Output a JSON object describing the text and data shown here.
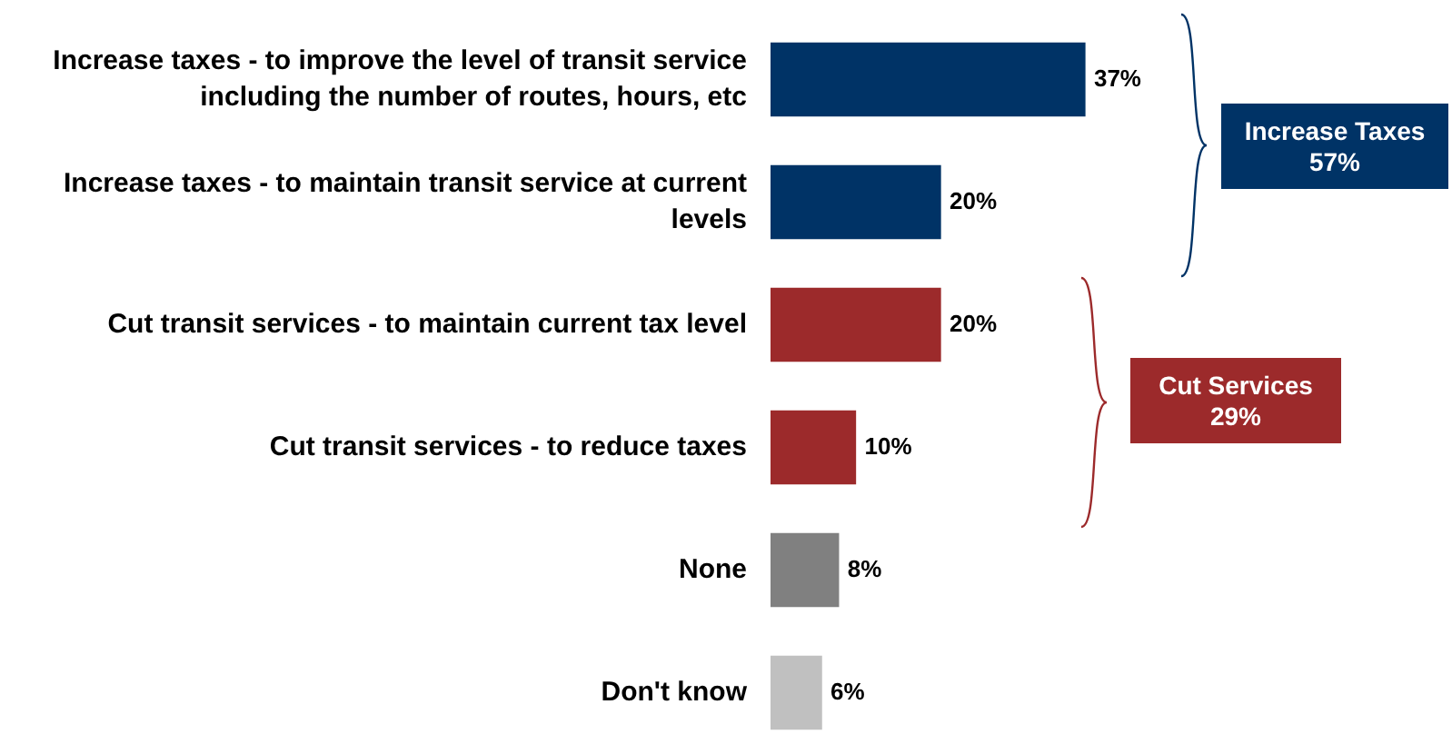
{
  "chart_data": {
    "type": "bar",
    "orientation": "horizontal",
    "categories": [
      "Increase taxes - to improve the level of transit service including the number of routes, hours, etc",
      "Increase taxes - to maintain transit service at current levels",
      "Cut transit services - to maintain current tax level",
      "Cut transit services - to reduce taxes",
      "None",
      "Don't know"
    ],
    "values": [
      37,
      20,
      20,
      10,
      8,
      6
    ],
    "colors": [
      "#003366",
      "#003366",
      "#9c2a2b",
      "#9c2a2b",
      "#808080",
      "#c0c0c0"
    ],
    "value_labels": [
      "37%",
      "20%",
      "20%",
      "10%",
      "8%",
      "6%"
    ],
    "tick_labels": "y",
    "legend": false,
    "annotations": [
      "Increase Taxes\n57%",
      "Cut Services\n29%"
    ]
  }
}
